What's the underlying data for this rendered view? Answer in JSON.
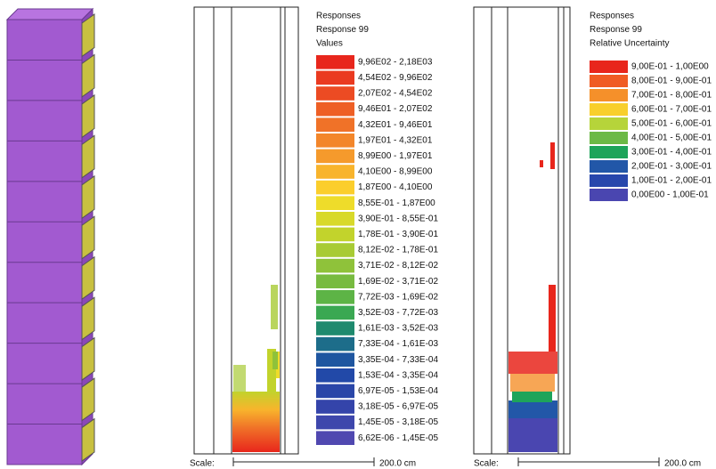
{
  "plot1": {
    "header": [
      "Responses",
      "Response 99",
      "Values"
    ],
    "legend": [
      {
        "label": "9,96E02 - 2,18E03",
        "color": "#e8261c"
      },
      {
        "label": "4,54E02 - 9,96E02",
        "color": "#ea3a20"
      },
      {
        "label": "2,07E02 - 4,54E02",
        "color": "#ec4b23"
      },
      {
        "label": "9,46E01 - 2,07E02",
        "color": "#ee5f25"
      },
      {
        "label": "4,32E01 - 9,46E01",
        "color": "#f07228"
      },
      {
        "label": "1,97E01 - 4,32E01",
        "color": "#f3862a"
      },
      {
        "label": "8,99E00 - 1,97E01",
        "color": "#f59a2c"
      },
      {
        "label": "4,10E00 - 8,99E00",
        "color": "#f8b42c"
      },
      {
        "label": "1,87E00 - 4,10E00",
        "color": "#fbce2c"
      },
      {
        "label": "8,55E-01 - 1,87E00",
        "color": "#eedc2a"
      },
      {
        "label": "3,90E-01 - 8,55E-01",
        "color": "#d8d92a"
      },
      {
        "label": "1,78E-01 - 3,90E-01",
        "color": "#c2d32c"
      },
      {
        "label": "8,12E-02 - 1,78E-01",
        "color": "#a8cb34"
      },
      {
        "label": "3,71E-02 - 8,12E-02",
        "color": "#8fc23a"
      },
      {
        "label": "1,69E-02 - 3,71E-02",
        "color": "#78bb40"
      },
      {
        "label": "7,72E-03 - 1,69E-02",
        "color": "#5db446"
      },
      {
        "label": "3,52E-03 - 7,72E-03",
        "color": "#3aa852"
      },
      {
        "label": "1,61E-03 - 3,52E-03",
        "color": "#1f8a6e"
      },
      {
        "label": "7,33E-04 - 1,61E-03",
        "color": "#1d6d8a"
      },
      {
        "label": "3,35E-04 - 7,33E-04",
        "color": "#1f56a0"
      },
      {
        "label": "1,53E-04 - 3,35E-04",
        "color": "#2249a8"
      },
      {
        "label": "6,97E-05 - 1,53E-04",
        "color": "#2a46a8"
      },
      {
        "label": "3,18E-05 - 6,97E-05",
        "color": "#3444aa"
      },
      {
        "label": "1,45E-05 - 3,18E-05",
        "color": "#3e47ac"
      },
      {
        "label": "6,62E-06 - 1,45E-05",
        "color": "#5048b0"
      }
    ],
    "scale": {
      "label": "Scale:",
      "length": "200.0 cm"
    }
  },
  "plot2": {
    "header": [
      "Responses",
      "Response 99",
      "Relative Uncertainty"
    ],
    "legend": [
      {
        "label": "9,00E-01 - 1,00E00",
        "color": "#e8261c"
      },
      {
        "label": "8,00E-01 - 9,00E-01",
        "color": "#f05c24"
      },
      {
        "label": "7,00E-01 - 8,00E-01",
        "color": "#f5902a"
      },
      {
        "label": "6,00E-01 - 7,00E-01",
        "color": "#f8cf2c"
      },
      {
        "label": "5,00E-01 - 6,00E-01",
        "color": "#b6d43a"
      },
      {
        "label": "4,00E-01 - 5,00E-01",
        "color": "#6cb946"
      },
      {
        "label": "3,00E-01 - 4,00E-01",
        "color": "#1ea45a"
      },
      {
        "label": "2,00E-01 - 3,00E-01",
        "color": "#2257a8"
      },
      {
        "label": "1,00E-01 - 2,00E-01",
        "color": "#2747ac"
      },
      {
        "label": "0,00E00 - 1,00E-01",
        "color": "#4a46b0"
      }
    ],
    "scale": {
      "label": "Scale:",
      "length": "200.0 cm"
    }
  }
}
